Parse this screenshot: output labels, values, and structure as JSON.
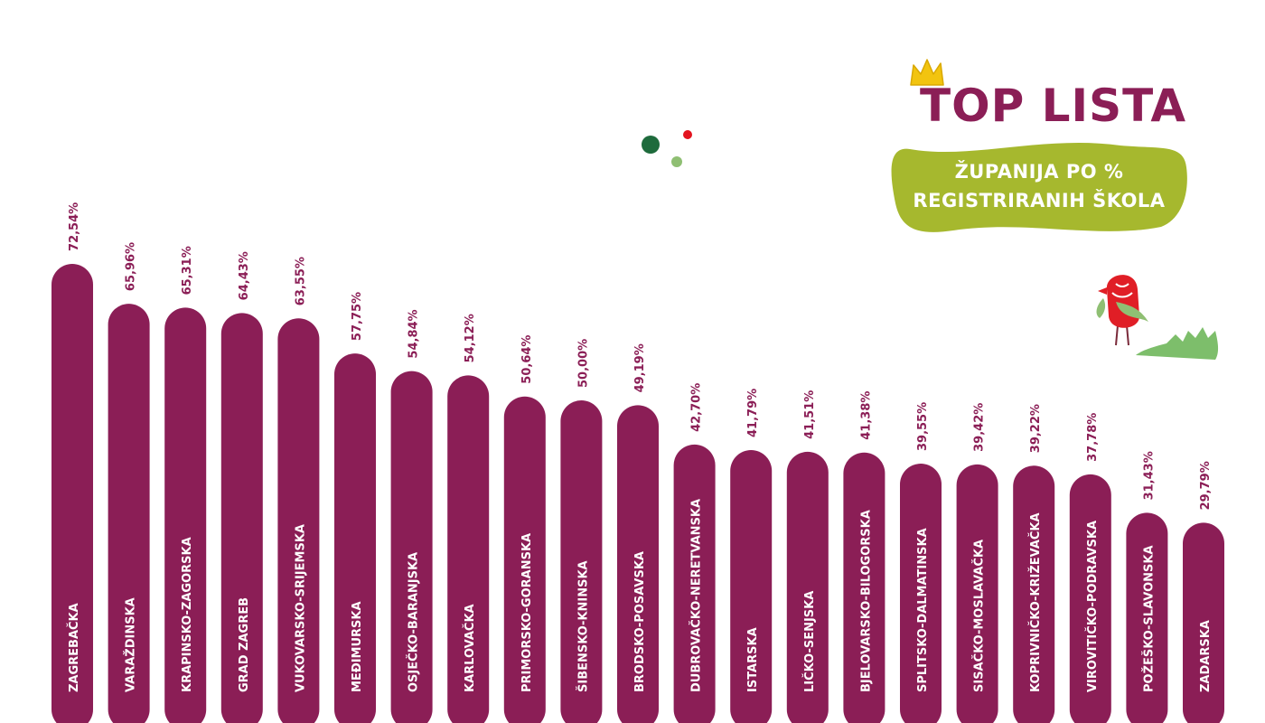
{
  "header": {
    "title": "TOP LISTA",
    "subtitle_line1": "ŽUPANIJA PO %",
    "subtitle_line2": "REGISTRIRANIH ŠKOLA"
  },
  "colors": {
    "bar": "#8b1e56",
    "title": "#8b1e56",
    "badge": "#a6b82e",
    "crown": "#f2c40f",
    "grass": "#7dbe6b"
  },
  "icons": [
    "crown-icon",
    "dots-decoration",
    "bird-illustration",
    "grass-decoration"
  ],
  "chart_data": {
    "type": "bar",
    "orientation": "vertical",
    "title": "TOP LISTA",
    "subtitle": "ŽUPANIJA PO % REGISTRIRANIH ŠKOLA",
    "unit": "%",
    "categories": [
      "ZAGREBAČKA",
      "VARAŽDINSKA",
      "KRAPINSKO-ZAGORSKA",
      "GRAD ZAGREB",
      "VUKOVARSKO-SRIJEMSKA",
      "MEĐIMURSKA",
      "OSJEČKO-BARANJSKA",
      "KARLOVAČKA",
      "PRIMORSKO-GORANSKA",
      "ŠIBENSKO-KNINSKA",
      "BRODSKO-POSAVSKA",
      "DUBROVAČKO-NERETVANSKA",
      "ISTARSKA",
      "LIČKO-SENJSKA",
      "BJELOVARSKO-BILOGORSKA",
      "SPLITSKO-DALMATINSKA",
      "SISAČKO-MOSLAVAČKA",
      "KOPRIVNIČKO-KRIŽEVAČKA",
      "VIROVITIČKO-PODRAVSKA",
      "POŽEŠKO-SLAVONSKA",
      "ZADARSKA"
    ],
    "values": [
      72.54,
      65.96,
      65.31,
      64.43,
      63.55,
      57.75,
      54.84,
      54.12,
      50.64,
      50.0,
      49.19,
      42.7,
      41.79,
      41.51,
      41.38,
      39.55,
      39.42,
      39.22,
      37.78,
      31.43,
      29.79
    ],
    "value_labels": [
      "72,54%",
      "65,96%",
      "65,31%",
      "64,43%",
      "63,55%",
      "57,75%",
      "54,84%",
      "54,12%",
      "50,64%",
      "50,00%",
      "49,19%",
      "42,70%",
      "41,79%",
      "41,51%",
      "41,38%",
      "39,55%",
      "39,42%",
      "39,22%",
      "37,78%",
      "31,43%",
      "29,79%"
    ],
    "grid": false,
    "legend": "none"
  }
}
